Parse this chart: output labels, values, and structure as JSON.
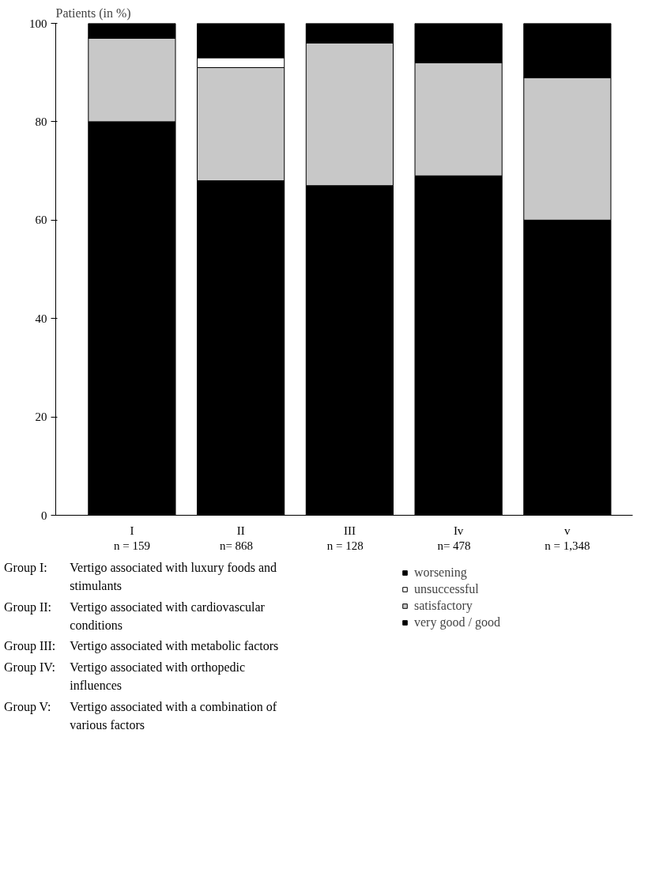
{
  "chart_data": {
    "type": "bar",
    "stacked": true,
    "ylabel": "Patients (in %)",
    "categories": [
      "I\nn = 159",
      "II\nn=    868",
      "III\nn =    128",
      "Iv\nn=    478",
      "v\nn = 1,348"
    ],
    "series": [
      {
        "name": "very good / good",
        "color": "#000000",
        "values": [
          80,
          68,
          67,
          69,
          60
        ]
      },
      {
        "name": "satisfactory",
        "color": "#c8c8c8",
        "values": [
          17,
          23,
          29,
          23,
          29
        ]
      },
      {
        "name": "unsuccessful",
        "color": "#ffffff",
        "values": [
          0,
          2,
          0,
          0,
          0
        ]
      },
      {
        "name": "worsening",
        "color": "#000000",
        "values": [
          3,
          7,
          4,
          8,
          11
        ]
      }
    ],
    "ylim": [
      0,
      100
    ],
    "yticks": [
      0,
      20,
      40,
      60,
      80,
      100
    ],
    "grid": false,
    "legend": "bottom right",
    "annotations": [
      "Group I:\tVertigo associated with luxury foods and stimulants",
      "Group II:\tVertigo associated with cardiovascular conditions",
      "Group III:\tVertigo associated with metabolic factors",
      "Group IV:\tVertigo associated with orthopedic influences",
      "Group V:\tVertigo associated with a combination of various factors"
    ]
  }
}
